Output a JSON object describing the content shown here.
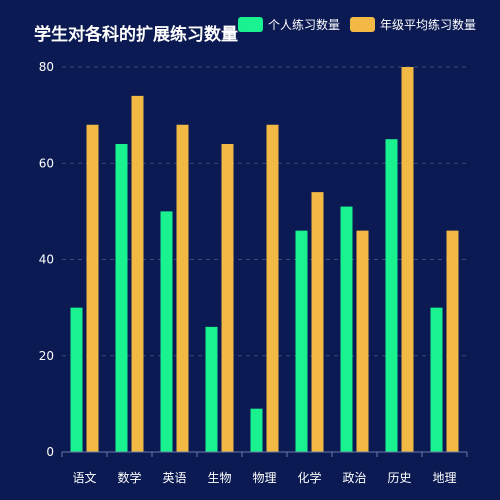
{
  "chart_data": {
    "type": "bar",
    "title": "学生对各科的扩展练习数量",
    "categories": [
      "语文",
      "数学",
      "英语",
      "生物",
      "物理",
      "化学",
      "政治",
      "历史",
      "地理"
    ],
    "series": [
      {
        "name": "个人练习数量",
        "color": "#19f28e",
        "values": [
          30,
          64,
          50,
          26,
          9,
          46,
          51,
          65,
          30
        ]
      },
      {
        "name": "年级平均练习数量",
        "color": "#f2b944",
        "values": [
          68,
          74,
          68,
          64,
          68,
          54,
          46,
          80,
          46
        ]
      }
    ],
    "ylim": [
      0,
      80
    ],
    "yticks": [
      0,
      20,
      40,
      60,
      80
    ],
    "grid": true,
    "legend_position": "top-right"
  }
}
